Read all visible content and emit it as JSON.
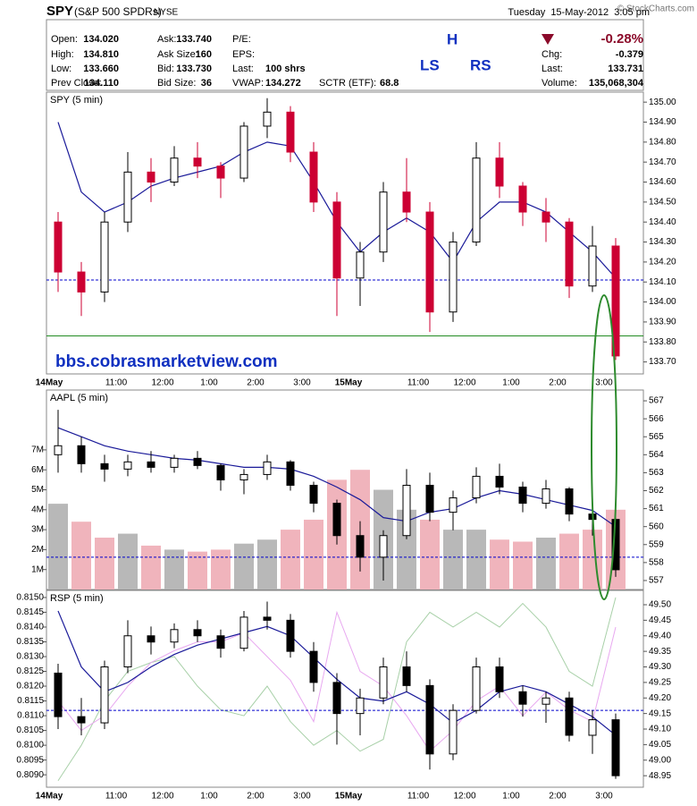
{
  "header": {
    "symbol": "SPY",
    "name": "(S&P 500 SPDRs)",
    "exchange": "NYSE",
    "copyright": "© StockCharts.com",
    "date": "Tuesday  15-May-2012  3:05 pm",
    "change_pct": "-0.28%",
    "quote": [
      [
        "Open:",
        "134.020",
        "Ask:",
        "133.740",
        "P/E:"
      ],
      [
        "High:",
        "134.810",
        "Ask Size:",
        "160",
        "EPS:"
      ],
      [
        "Low:",
        "133.660",
        "Bid:",
        "133.730",
        "Last:",
        "100 shrs"
      ],
      [
        "Prev Close:",
        "134.110",
        "Bid Size:",
        "36",
        "VWAP:",
        "134.272",
        "SCTR (ETF):",
        "68.8"
      ]
    ],
    "right_quote": [
      [
        "Chg:",
        "-0.379"
      ],
      [
        "Last:",
        "133.731"
      ],
      [
        "Volume:",
        "135,068,304"
      ]
    ]
  },
  "chart_data": [
    {
      "type": "candlestick",
      "title": "SPY (5 min)",
      "categories": [
        "14May",
        null,
        null,
        "11:00",
        null,
        "12:00",
        null,
        "1:00",
        null,
        "2:00",
        null,
        "3:00",
        null,
        "15May",
        null,
        null,
        "11:00",
        null,
        "12:00",
        null,
        "1:00",
        null,
        "2:00",
        null,
        "3:00"
      ],
      "open": [
        134.4,
        134.15,
        134.05,
        134.4,
        134.65,
        134.6,
        134.72,
        134.68,
        134.62,
        134.88,
        134.95,
        134.75,
        134.5,
        134.12,
        134.25,
        134.55,
        134.45,
        133.95,
        134.3,
        134.72,
        134.58,
        134.45,
        134.4,
        134.08,
        134.28
      ],
      "high": [
        134.45,
        134.2,
        134.45,
        134.75,
        134.72,
        134.78,
        134.8,
        134.7,
        134.9,
        135.02,
        134.98,
        134.8,
        134.55,
        134.3,
        134.6,
        134.72,
        134.5,
        134.35,
        134.8,
        134.8,
        134.6,
        134.52,
        134.42,
        134.38,
        134.32
      ],
      "low": [
        134.05,
        133.93,
        134.0,
        134.35,
        134.5,
        134.58,
        134.62,
        134.52,
        134.6,
        134.82,
        134.7,
        134.45,
        133.93,
        133.98,
        134.2,
        134.4,
        133.85,
        133.9,
        134.28,
        134.52,
        134.38,
        134.3,
        134.02,
        134.05,
        133.71
      ],
      "close": [
        134.15,
        134.05,
        134.4,
        134.65,
        134.6,
        134.72,
        134.68,
        134.62,
        134.88,
        134.95,
        134.75,
        134.5,
        134.12,
        134.25,
        134.55,
        134.45,
        133.95,
        134.3,
        134.72,
        134.58,
        134.45,
        134.4,
        134.08,
        134.28,
        133.73
      ],
      "up_color": "#ffffff",
      "down_color": "#cc0033",
      "ma": {
        "color": "#1a1a99",
        "values": [
          134.9,
          134.55,
          134.45,
          134.5,
          134.58,
          134.62,
          134.65,
          134.68,
          134.75,
          134.8,
          134.78,
          134.6,
          134.4,
          134.25,
          134.35,
          134.42,
          134.35,
          134.2,
          134.4,
          134.5,
          134.5,
          134.45,
          134.35,
          134.25,
          134.12
        ]
      },
      "hlines": [
        {
          "value": 134.11,
          "color": "#0000cc",
          "style": "dashed"
        },
        {
          "value": 133.83,
          "color": "#228b22",
          "style": "solid"
        }
      ],
      "annotations": [
        "H",
        "LS",
        "RS",
        "bbs.cobrasmarketview.com"
      ],
      "ylim": [
        133.64,
        135.05
      ],
      "yticks": [
        {
          "value": 133.7,
          "label": "133.70"
        },
        {
          "value": 133.8,
          "label": "133.80"
        },
        {
          "value": 133.9,
          "label": "133.90"
        },
        {
          "value": 134.0,
          "label": "134.00"
        },
        {
          "value": 134.1,
          "label": "134.10"
        },
        {
          "value": 134.2,
          "label": "134.20"
        },
        {
          "value": 134.3,
          "label": "134.30"
        },
        {
          "value": 134.4,
          "label": "134.40"
        },
        {
          "value": 134.5,
          "label": "134.50"
        },
        {
          "value": 134.6,
          "label": "134.60"
        },
        {
          "value": 134.7,
          "label": "134.70"
        },
        {
          "value": 134.8,
          "label": "134.80"
        },
        {
          "value": 134.9,
          "label": "134.90"
        },
        {
          "value": 135.0,
          "label": "135.00"
        }
      ]
    },
    {
      "type": "candlestick",
      "title": "AAPL (5 min)",
      "open": [
        564.0,
        564.5,
        563.5,
        563.2,
        563.6,
        563.3,
        563.8,
        563.4,
        562.6,
        562.9,
        563.6,
        562.3,
        561.3,
        559.5,
        558.3,
        559.5,
        562.3,
        560.8,
        561.6,
        562.8,
        562.2,
        561.3,
        562.1,
        560.7,
        560.4
      ],
      "high": [
        566.5,
        565.0,
        564.0,
        564.0,
        564.2,
        564.0,
        564.2,
        563.5,
        563.2,
        564.0,
        563.7,
        562.5,
        561.5,
        560.3,
        559.8,
        563.2,
        563.0,
        562.0,
        563.3,
        563.5,
        562.5,
        562.6,
        562.2,
        561.3,
        560.8
      ],
      "low": [
        563.0,
        563.0,
        562.5,
        562.8,
        563.0,
        563.0,
        563.2,
        562.0,
        561.8,
        562.6,
        562.0,
        560.8,
        559.0,
        557.5,
        557.0,
        559.3,
        560.3,
        559.8,
        561.3,
        561.8,
        560.8,
        561.0,
        560.3,
        559.5,
        557.2
      ],
      "close": [
        564.5,
        563.5,
        563.2,
        563.6,
        563.3,
        563.8,
        563.4,
        562.6,
        562.9,
        563.6,
        562.3,
        561.3,
        559.5,
        558.3,
        559.5,
        562.3,
        560.8,
        561.6,
        562.8,
        562.2,
        561.3,
        562.1,
        560.7,
        560.4,
        557.6
      ],
      "up_color": "#ffffff",
      "down_color": "#000000",
      "ma": {
        "color": "#1a1a99",
        "values": [
          565.5,
          565.0,
          564.5,
          564.2,
          564.0,
          563.8,
          563.7,
          563.5,
          563.3,
          563.3,
          563.2,
          562.8,
          562.2,
          561.5,
          560.5,
          560.3,
          560.8,
          561.0,
          561.6,
          562.0,
          561.8,
          561.5,
          561.2,
          560.9,
          560.0
        ]
      },
      "volume": {
        "axis": "y2",
        "up_color": "#b8b8b8",
        "down_color": "#f0b4bc",
        "values": [
          4300000,
          3400000,
          2600000,
          2800000,
          2200000,
          2000000,
          1900000,
          2000000,
          2300000,
          2500000,
          3000000,
          3500000,
          5500000,
          6000000,
          5000000,
          4000000,
          3500000,
          3000000,
          3000000,
          2500000,
          2400000,
          2600000,
          2800000,
          3000000,
          4000000
        ]
      },
      "hlines": [
        {
          "value": 558.3,
          "color": "#0000cc",
          "style": "dashed"
        }
      ],
      "ylim": [
        556.5,
        567.6
      ],
      "yticks": [
        557,
        558,
        559,
        560,
        561,
        562,
        563,
        564,
        565,
        566,
        567
      ],
      "y2lim": [
        0,
        10000000
      ],
      "y2ticks": [
        {
          "value": 1000000,
          "label": "1M"
        },
        {
          "value": 2000000,
          "label": "2M"
        },
        {
          "value": 3000000,
          "label": "3M"
        },
        {
          "value": 4000000,
          "label": "4M"
        },
        {
          "value": 5000000,
          "label": "5M"
        },
        {
          "value": 6000000,
          "label": "6M"
        },
        {
          "value": 7000000,
          "label": "7M"
        }
      ]
    },
    {
      "type": "candlestick",
      "title": "RSP (5 min)",
      "categories": [
        "14May",
        null,
        null,
        "11:00",
        null,
        "12:00",
        null,
        "1:00",
        null,
        "2:00",
        null,
        "3:00",
        null,
        "15May",
        null,
        null,
        "11:00",
        null,
        "12:00",
        null,
        "1:00",
        null,
        "2:00",
        null,
        "3:00"
      ],
      "open": [
        49.28,
        49.14,
        49.12,
        49.3,
        49.4,
        49.38,
        49.42,
        49.4,
        49.36,
        49.46,
        49.45,
        49.35,
        49.25,
        49.15,
        49.2,
        49.3,
        49.24,
        49.02,
        49.16,
        49.3,
        49.22,
        49.18,
        49.2,
        49.08,
        49.13
      ],
      "high": [
        49.31,
        49.2,
        49.32,
        49.45,
        49.43,
        49.44,
        49.45,
        49.42,
        49.48,
        49.51,
        49.47,
        49.38,
        49.28,
        49.23,
        49.33,
        49.35,
        49.26,
        49.18,
        49.33,
        49.33,
        49.24,
        49.22,
        49.22,
        49.16,
        49.15
      ],
      "low": [
        49.1,
        49.08,
        49.1,
        49.28,
        49.34,
        49.36,
        49.38,
        49.33,
        49.35,
        49.42,
        49.33,
        49.22,
        49.05,
        49.08,
        49.18,
        49.22,
        48.97,
        49.0,
        49.15,
        49.2,
        49.14,
        49.12,
        49.06,
        49.02,
        48.94
      ],
      "close": [
        49.14,
        49.12,
        49.3,
        49.4,
        49.38,
        49.42,
        49.4,
        49.36,
        49.46,
        49.45,
        49.35,
        49.25,
        49.15,
        49.2,
        49.3,
        49.24,
        49.02,
        49.16,
        49.3,
        49.22,
        49.18,
        49.2,
        49.08,
        49.13,
        48.95
      ],
      "up_color": "#ffffff",
      "down_color": "#000000",
      "ma": {
        "color": "#1a1a99",
        "values": [
          49.48,
          49.3,
          49.22,
          49.25,
          49.3,
          49.34,
          49.37,
          49.39,
          49.41,
          49.43,
          49.4,
          49.33,
          49.26,
          49.2,
          49.19,
          49.22,
          49.18,
          49.12,
          49.16,
          49.22,
          49.24,
          49.22,
          49.18,
          49.14,
          49.08
        ]
      },
      "overlays": [
        {
          "axis": "y2",
          "color": "#a8d0a8",
          "values": [
            0.8088,
            0.81,
            0.8115,
            0.8125,
            0.8128,
            0.813,
            0.812,
            0.8112,
            0.811,
            0.812,
            0.8108,
            0.81,
            0.8105,
            0.8098,
            0.8102,
            0.8135,
            0.8145,
            0.814,
            0.8145,
            0.814,
            0.8148,
            0.814,
            0.8125,
            0.812,
            0.815
          ]
        },
        {
          "axis": "y2",
          "color": "#e8a8f0",
          "values": [
            0.8115,
            0.8105,
            0.811,
            0.812,
            0.8128,
            0.8132,
            0.8135,
            0.8135,
            0.8138,
            0.813,
            0.8122,
            0.8108,
            0.8145,
            0.8125,
            0.812,
            0.811,
            0.8098,
            0.8105,
            0.8115,
            0.812,
            0.811,
            0.8118,
            0.8112,
            0.8108,
            0.814
          ]
        }
      ],
      "hlines": [
        {
          "value": 49.16,
          "color": "#0000cc",
          "style": "dashed"
        }
      ],
      "ylim": [
        48.913,
        49.546
      ],
      "yticks": [
        48.95,
        {
          "value": 49.0,
          "label": "49.00"
        },
        49.05,
        {
          "value": 49.1,
          "label": "49.10"
        },
        49.15,
        {
          "value": 49.2,
          "label": "49.20"
        },
        49.25,
        {
          "value": 49.3,
          "label": "49.30"
        },
        49.35,
        {
          "value": 49.4,
          "label": "49.40"
        },
        49.45,
        {
          "value": 49.5,
          "label": "49.50"
        }
      ],
      "y2lim": [
        0.80858,
        0.81524
      ],
      "y2ticks": [
        {
          "value": 0.809,
          "label": "0.8090"
        },
        0.8095,
        {
          "value": 0.81,
          "label": "0.8100"
        },
        0.8105,
        {
          "value": 0.811,
          "label": "0.8110"
        },
        0.8115,
        {
          "value": 0.812,
          "label": "0.8120"
        },
        0.8125,
        {
          "value": 0.813,
          "label": "0.8130"
        },
        0.8135,
        {
          "value": 0.814,
          "label": "0.8140"
        },
        0.8145,
        {
          "value": 0.815,
          "label": "0.8150"
        }
      ]
    }
  ]
}
